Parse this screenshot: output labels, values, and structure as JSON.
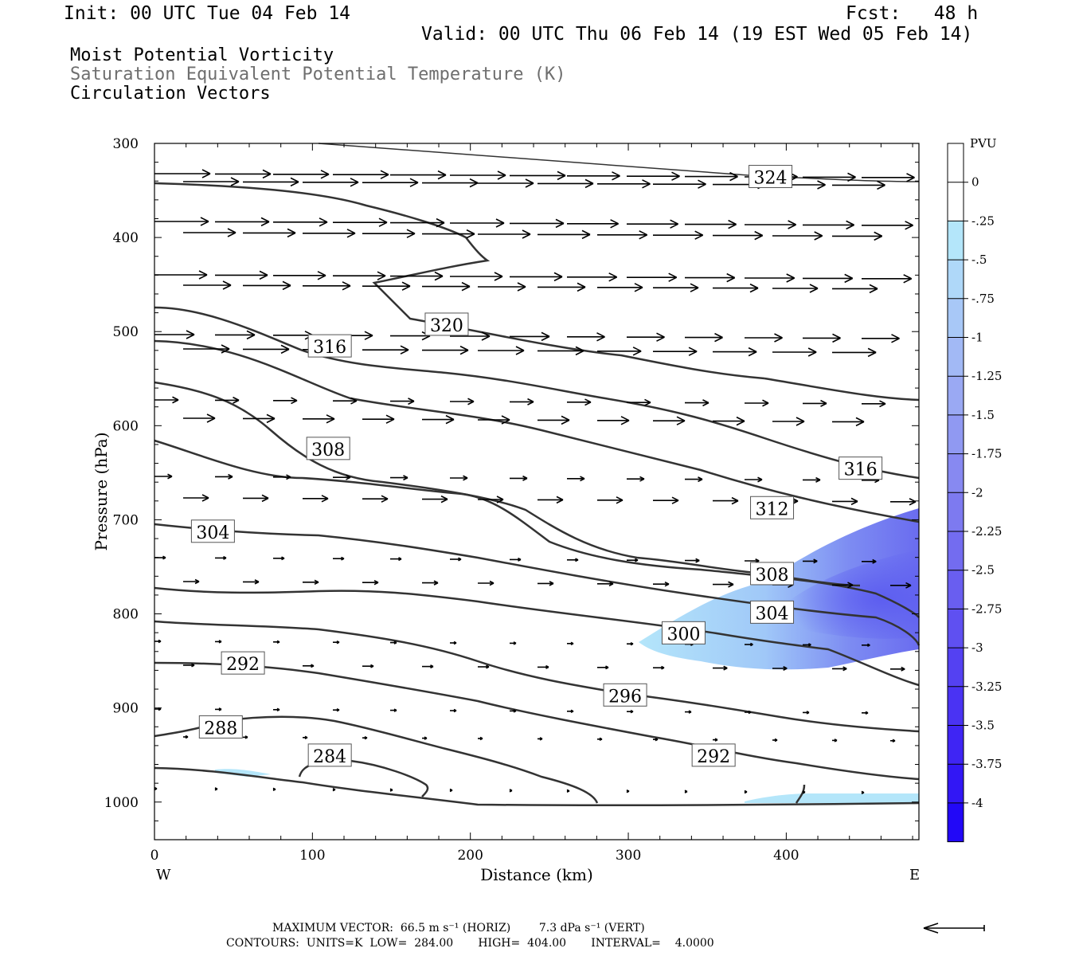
{
  "header": {
    "init": "Init: 00 UTC Tue 04 Feb 14",
    "fcst": "Fcst:   48 h",
    "valid": "Valid: 00 UTC Thu 06 Feb 14 (19 EST Wed 05 Feb 14)",
    "field1": "Moist Potential Vorticity",
    "field2": "Saturation Equivalent Potential Temperature (K)",
    "field3": "Circulation Vectors"
  },
  "colors": {
    "field2": "#6e6e6e",
    "contour": "#333333",
    "mpv_light": "#b4e6fa",
    "mpv_dark": "#4646f0"
  },
  "chart_data": {
    "type": "cross-section",
    "xlabel": "Distance (km)",
    "ylabel": "Pressure (hPa)",
    "x_range": [
      0,
      484
    ],
    "y_range": [
      300,
      1040
    ],
    "x_ticks": [
      0,
      100,
      200,
      300,
      400
    ],
    "y_ticks": [
      300,
      400,
      500,
      600,
      700,
      800,
      900,
      1000
    ],
    "left_end_label": "W",
    "right_end_label": "E",
    "contour_labels": [
      {
        "text": "324",
        "x": 390,
        "p": 336
      },
      {
        "text": "320",
        "x": 185,
        "p": 493
      },
      {
        "text": "316",
        "x": 111,
        "p": 516
      },
      {
        "text": "316",
        "x": 447,
        "p": 646
      },
      {
        "text": "308",
        "x": 110,
        "p": 625
      },
      {
        "text": "312",
        "x": 391,
        "p": 688
      },
      {
        "text": "304",
        "x": 37,
        "p": 713
      },
      {
        "text": "308",
        "x": 391,
        "p": 758
      },
      {
        "text": "304",
        "x": 391,
        "p": 799
      },
      {
        "text": "300",
        "x": 335,
        "p": 821
      },
      {
        "text": "292",
        "x": 56,
        "p": 853
      },
      {
        "text": "296",
        "x": 298,
        "p": 887
      },
      {
        "text": "288",
        "x": 42,
        "p": 921
      },
      {
        "text": "292",
        "x": 354,
        "p": 951
      },
      {
        "text": "284",
        "x": 111,
        "p": 951
      }
    ],
    "colorbar": {
      "title": "PVU",
      "levels": [
        0,
        -0.25,
        -0.5,
        -0.75,
        -1,
        -1.25,
        -1.5,
        -1.75,
        -2,
        -2.25,
        -2.5,
        -2.75,
        -3,
        -3.25,
        -3.5,
        -3.75,
        -4
      ],
      "labels": [
        "0",
        "-.25",
        "-.5",
        "-.75",
        "-1",
        "-1.25",
        "-1.5",
        "-1.75",
        "-2",
        "-2.25",
        "-2.5",
        "-2.75",
        "-3",
        "-3.25",
        "-3.5",
        "-3.75",
        "-4"
      ]
    }
  },
  "footer": {
    "max_vector": "MAXIMUM VECTOR:  66.5 m s⁻¹ (HORIZ)        7.3 dPa s⁻¹ (VERT)",
    "contours": "CONTOURS:  UNITS=K  LOW=  284.00       HIGH=  404.00       INTERVAL=    4.0000"
  }
}
